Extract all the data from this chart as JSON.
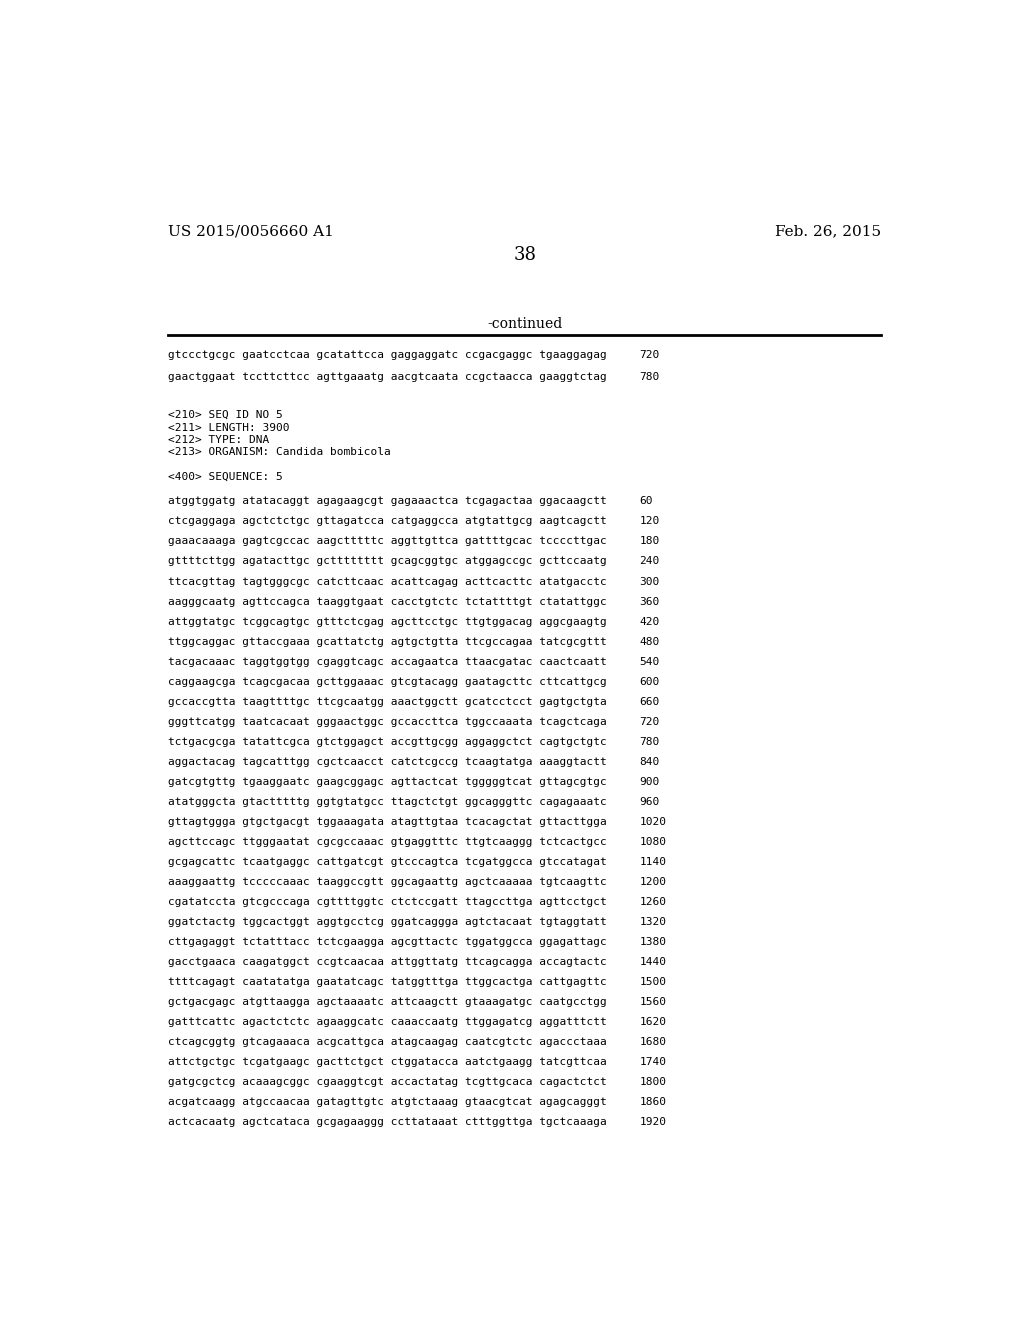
{
  "header_left": "US 2015/0056660 A1",
  "header_right": "Feb. 26, 2015",
  "page_number": "38",
  "continued_label": "-continued",
  "background_color": "#ffffff",
  "text_color": "#000000",
  "line_color": "#000000",
  "header_fontsize": 11,
  "page_num_fontsize": 13,
  "continued_fontsize": 10,
  "mono_fontsize": 8.0,
  "meta_fontsize": 8.0,
  "seq_lines": [
    [
      "gtccctgcgc gaatcctcaa gcatattcca gaggaggatc ccgacgaggc tgaaggagag",
      "720"
    ],
    [
      "gaactggaat tccttcttcc agttgaaatg aacgtcaata ccgctaacca gaaggtctag",
      "780"
    ]
  ],
  "meta_lines": [
    "<210> SEQ ID NO 5",
    "<211> LENGTH: 3900",
    "<212> TYPE: DNA",
    "<213> ORGANISM: Candida bombicola",
    "",
    "<400> SEQUENCE: 5"
  ],
  "dna_lines": [
    [
      "atggtggatg atatacaggt agagaagcgt gagaaactca tcgagactaa ggacaagctt",
      "60"
    ],
    [
      "ctcgaggaga agctctctgc gttagatcca catgaggcca atgtattgcg aagtcagctt",
      "120"
    ],
    [
      "gaaacaaaga gagtcgccac aagctttttc aggttgttca gattttgcac tccccttgac",
      "180"
    ],
    [
      "gttttcttgg agatacttgc gctttttttt gcagcggtgc atggagccgc gcttccaatg",
      "240"
    ],
    [
      "ttcacgttag tagtgggcgc catcttcaac acattcagag acttcacttc atatgacctc",
      "300"
    ],
    [
      "aagggcaatg agttccagca taaggtgaat cacctgtctc tctattttgt ctatattggc",
      "360"
    ],
    [
      "attggtatgc tcggcagtgc gtttctcgag agcttcctgc ttgtggacag aggcgaagtg",
      "420"
    ],
    [
      "ttggcaggac gttaccgaaa gcattatctg agtgctgtta ttcgccagaa tatcgcgttt",
      "480"
    ],
    [
      "tacgacaaac taggtggtgg cgaggtcagc accagaatca ttaacgatac caactcaatt",
      "540"
    ],
    [
      "caggaagcga tcagcgacaa gcttggaaac gtcgtacagg gaatagcttc cttcattgcg",
      "600"
    ],
    [
      "gccaccgtta taagttttgc ttcgcaatgg aaactggctt gcatcctcct gagtgctgta",
      "660"
    ],
    [
      "gggttcatgg taatcacaat gggaactggc gccaccttca tggccaaata tcagctcaga",
      "720"
    ],
    [
      "tctgacgcga tatattcgca gtctggagct accgttgcgg aggaggctct cagtgctgtc",
      "780"
    ],
    [
      "aggactacag tagcatttgg cgctcaacct catctcgccg tcaagtatga aaaggtactt",
      "840"
    ],
    [
      "gatcgtgttg tgaaggaatc gaagcggagc agttactcat tgggggtcat gttagcgtgc",
      "900"
    ],
    [
      "atatgggcta gtactttttg ggtgtatgcc ttagctctgt ggcagggttc cagagaaatc",
      "960"
    ],
    [
      "gttagtggga gtgctgacgt tggaaagata atagttgtaa tcacagctat gttacttgga",
      "1020"
    ],
    [
      "agcttccagc ttgggaatat cgcgccaaac gtgaggtttc ttgtcaaggg tctcactgcc",
      "1080"
    ],
    [
      "gcgagcattc tcaatgaggc cattgatcgt gtcccagtca tcgatggcca gtccatagat",
      "1140"
    ],
    [
      "aaaggaattg tcccccaaac taaggccgtt ggcagaattg agctcaaaaa tgtcaagttc",
      "1200"
    ],
    [
      "cgatatccta gtcgcccaga cgttttggtc ctctccgatt ttagccttga agttcctgct",
      "1260"
    ],
    [
      "ggatctactg tggcactggt aggtgcctcg ggatcaggga agtctacaat tgtaggtatt",
      "1320"
    ],
    [
      "cttgagaggt tctatttacc tctcgaagga agcgttactc tggatggcca ggagattagc",
      "1380"
    ],
    [
      "gacctgaaca caagatggct ccgtcaacaa attggttatg ttcagcagga accagtactc",
      "1440"
    ],
    [
      "ttttcagagt caatatatga gaatatcagc tatggtttga ttggcactga cattgagttc",
      "1500"
    ],
    [
      "gctgacgagc atgttaagga agctaaaatc attcaagctt gtaaagatgc caatgcctgg",
      "1560"
    ],
    [
      "gatttcattc agactctctc agaaggcatc caaaccaatg ttggagatcg aggatttctt",
      "1620"
    ],
    [
      "ctcagcggtg gtcagaaaca acgcattgca atagcaagag caatcgtctc agaccctaaa",
      "1680"
    ],
    [
      "attctgctgc tcgatgaagc gacttctgct ctggatacca aatctgaagg tatcgttcaa",
      "1740"
    ],
    [
      "gatgcgctcg acaaagcggc cgaaggtcgt accactatag tcgttgcaca cagactctct",
      "1800"
    ],
    [
      "acgatcaagg atgccaacaa gatagttgtc atgtctaaag gtaacgtcat agagcagggt",
      "1860"
    ],
    [
      "actcacaatg agctcataca gcgagaaggg ccttataaat ctttggttga tgctcaaaga",
      "1920"
    ]
  ]
}
